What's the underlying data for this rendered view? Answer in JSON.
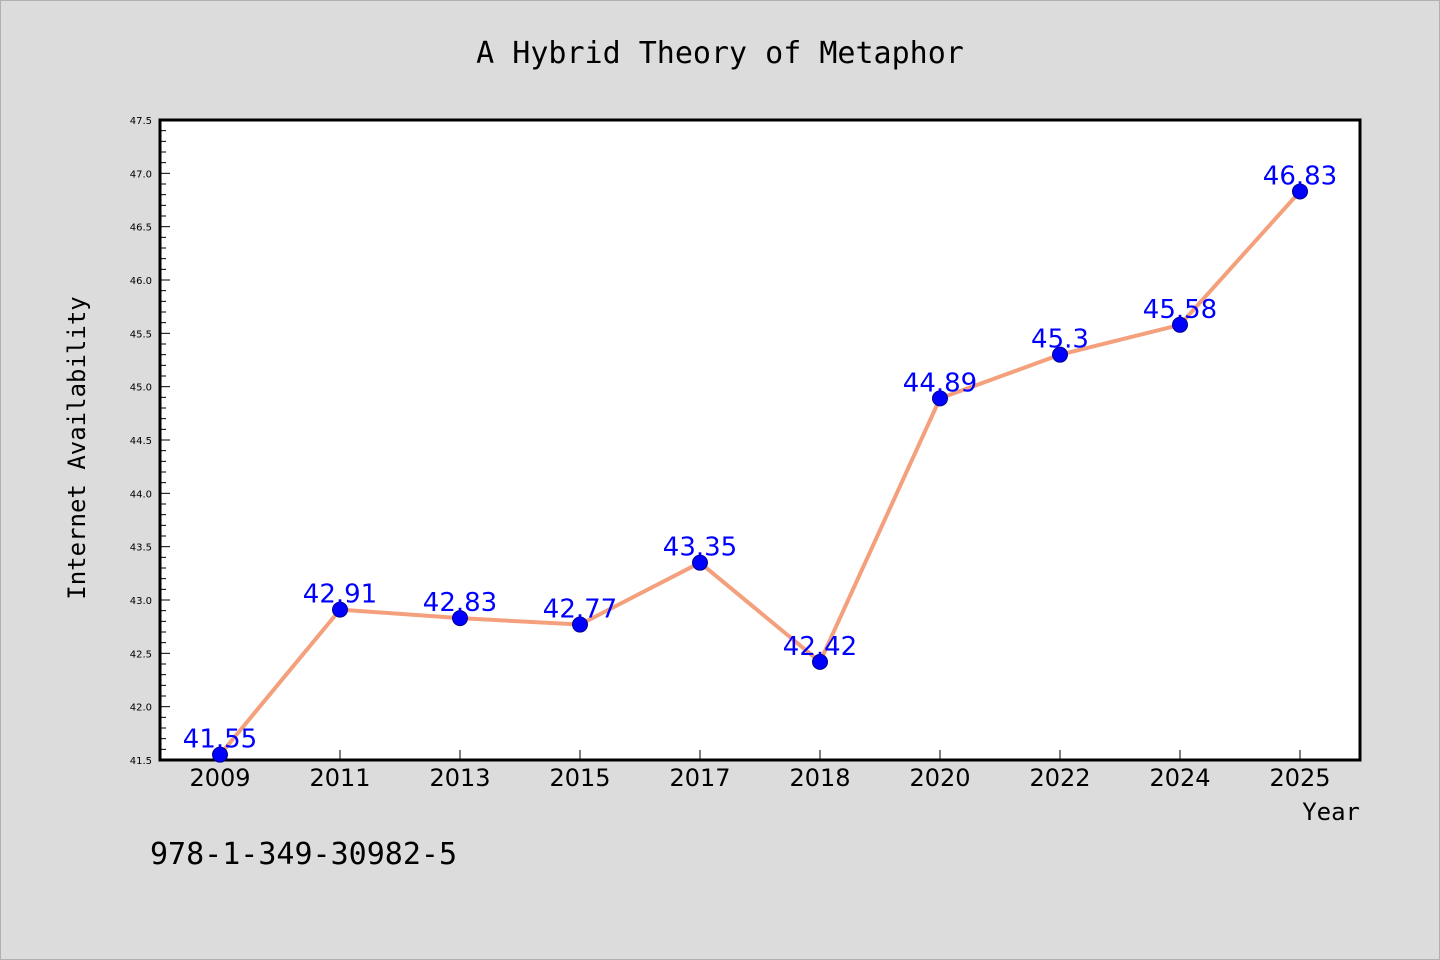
{
  "chart_data": {
    "type": "line",
    "title": "A Hybrid Theory of Metaphor",
    "xlabel": "Year",
    "ylabel": "Internet Availability",
    "categories": [
      "2009",
      "2011",
      "2013",
      "2015",
      "2017",
      "2018",
      "2020",
      "2022",
      "2024",
      "2025"
    ],
    "series": [
      {
        "values": [
          41.55,
          42.91,
          42.83,
          42.77,
          43.35,
          42.42,
          44.89,
          45.3,
          45.58,
          46.83
        ],
        "labels": [
          "41.55",
          "42.91",
          "42.83",
          "42.77",
          "43.35",
          "42.42",
          "44.89",
          "45.3",
          "45.58",
          "46.83"
        ],
        "line_color": "#f4a07c",
        "marker_color": "#0000ff"
      }
    ],
    "ylim": [
      41.5,
      47.5
    ],
    "yticks": [
      41.5,
      42.0,
      42.5,
      43.0,
      43.5,
      44.0,
      44.5,
      45.0,
      45.5,
      46.0,
      46.5,
      47.0,
      47.5
    ],
    "ytick_labels": [
      "41.5",
      "42.0",
      "42.5",
      "43.0",
      "43.5",
      "44.0",
      "44.5",
      "45.0",
      "45.5",
      "46.0",
      "46.5",
      "47.0",
      "47.5"
    ],
    "grid": false,
    "label_color": "#0000ff",
    "background_color": "#dcdcdc",
    "plot_background": "#ffffff"
  },
  "footer": {
    "isbn": "978-1-349-30982-5"
  }
}
